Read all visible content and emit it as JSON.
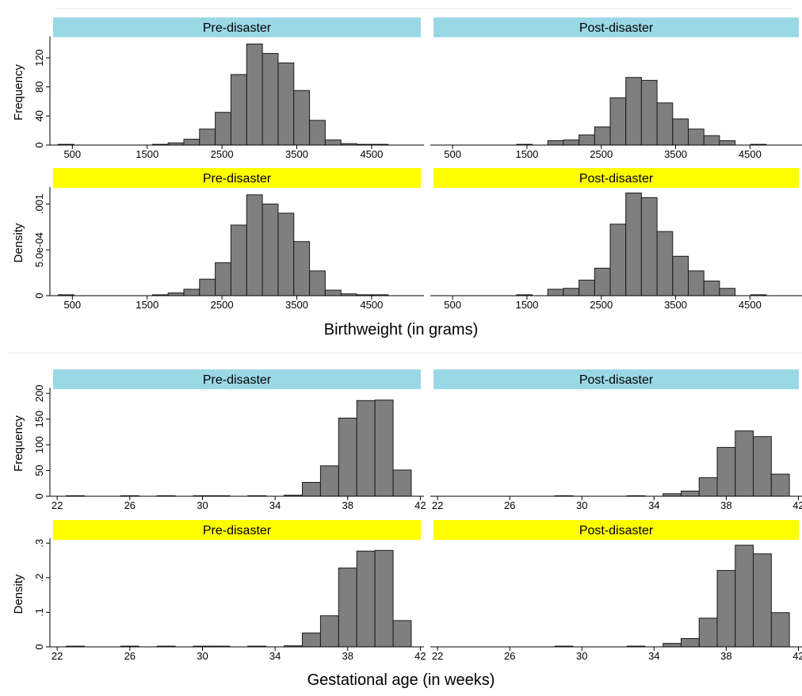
{
  "colors": {
    "strip_frequency": "#9bd8e6",
    "strip_density": "#ffff00",
    "bar_fill": "#7f7f7f",
    "bar_edge": "#1a1a1a"
  },
  "chart_data": [
    {
      "type": "bar",
      "group": "birthweight",
      "xlabel": "Birthweight (in grams)",
      "xticks": [
        500,
        1500,
        2500,
        3500,
        4500
      ],
      "xlim": [
        200,
        5200
      ],
      "bin_width": 210,
      "panels": [
        {
          "strip": "Pre-disaster",
          "ylabel": "Frequency",
          "measure": "frequency",
          "ylim": [
            0,
            145
          ],
          "yticks": [
            0,
            40,
            80,
            120
          ],
          "ytick_labels": [
            "0",
            "40",
            "80",
            "120"
          ],
          "bins": [
            [
              415,
              1
            ],
            [
              1675,
              1
            ],
            [
              1885,
              3
            ],
            [
              2095,
              8
            ],
            [
              2305,
              22
            ],
            [
              2515,
              45
            ],
            [
              2725,
              97
            ],
            [
              2935,
              139
            ],
            [
              3145,
              126
            ],
            [
              3355,
              113
            ],
            [
              3565,
              75
            ],
            [
              3775,
              34
            ],
            [
              3985,
              7
            ],
            [
              4195,
              2
            ],
            [
              4405,
              1
            ],
            [
              4615,
              1
            ]
          ]
        },
        {
          "strip": "Post-disaster",
          "ylabel": "",
          "measure": "frequency",
          "ylim": [
            0,
            145
          ],
          "yticks": [],
          "ytick_labels": [],
          "bins": [
            [
              1465,
              1
            ],
            [
              1885,
              6
            ],
            [
              2095,
              7
            ],
            [
              2305,
              14
            ],
            [
              2515,
              25
            ],
            [
              2725,
              65
            ],
            [
              2935,
              93
            ],
            [
              3145,
              89
            ],
            [
              3355,
              58
            ],
            [
              3565,
              36
            ],
            [
              3775,
              22
            ],
            [
              3985,
              13
            ],
            [
              4195,
              6
            ],
            [
              4615,
              1
            ]
          ]
        },
        {
          "strip": "Pre-disaster",
          "ylabel": "Density",
          "measure": "density",
          "ylim": [
            0,
            0.00115
          ],
          "yticks": [
            0,
            0.0005,
            0.001
          ],
          "ytick_labels": [
            "0",
            "5.0e-04",
            ".001"
          ],
          "bins": [
            [
              415,
              1e-05
            ],
            [
              1675,
              1e-05
            ],
            [
              1885,
              3e-05
            ],
            [
              2095,
              7e-05
            ],
            [
              2305,
              0.00018
            ],
            [
              2515,
              0.00036
            ],
            [
              2725,
              0.00077
            ],
            [
              2935,
              0.0011
            ],
            [
              3145,
              0.001
            ],
            [
              3355,
              0.0009
            ],
            [
              3565,
              0.00059
            ],
            [
              3775,
              0.00027
            ],
            [
              3985,
              6e-05
            ],
            [
              4195,
              2e-05
            ],
            [
              4405,
              1e-05
            ],
            [
              4615,
              1e-05
            ]
          ]
        },
        {
          "strip": "Post-disaster",
          "ylabel": "",
          "measure": "density",
          "ylim": [
            0,
            0.00115
          ],
          "yticks": [],
          "ytick_labels": [],
          "bins": [
            [
              1465,
              1e-05
            ],
            [
              1885,
              7e-05
            ],
            [
              2095,
              8e-05
            ],
            [
              2305,
              0.00017
            ],
            [
              2515,
              0.0003
            ],
            [
              2725,
              0.00078
            ],
            [
              2935,
              0.00112
            ],
            [
              3145,
              0.00107
            ],
            [
              3355,
              0.0007
            ],
            [
              3565,
              0.00043
            ],
            [
              3775,
              0.00027
            ],
            [
              3985,
              0.00016
            ],
            [
              4195,
              8e-05
            ],
            [
              4615,
              1e-05
            ]
          ]
        }
      ]
    },
    {
      "type": "bar",
      "group": "gestational_age",
      "xlabel": "Gestational age (in weeks)",
      "xticks": [
        22,
        26,
        30,
        34,
        38,
        42
      ],
      "xlim": [
        21.6,
        42.2
      ],
      "bin_width": 1,
      "panels": [
        {
          "strip": "Pre-disaster",
          "ylabel": "Frequency",
          "measure": "frequency",
          "ylim": [
            0,
            205
          ],
          "yticks": [
            0,
            50,
            100,
            150,
            200
          ],
          "ytick_labels": [
            "0",
            "50",
            "100",
            "150",
            "200"
          ],
          "bins": [
            [
              23,
              1
            ],
            [
              26,
              1
            ],
            [
              28,
              1
            ],
            [
              30,
              1
            ],
            [
              31,
              1
            ],
            [
              33,
              1
            ],
            [
              35,
              2
            ],
            [
              36,
              27
            ],
            [
              37,
              59
            ],
            [
              38,
              152
            ],
            [
              39,
              186
            ],
            [
              40,
              187
            ],
            [
              41,
              51
            ]
          ]
        },
        {
          "strip": "Post-disaster",
          "ylabel": "",
          "measure": "frequency",
          "ylim": [
            0,
            205
          ],
          "yticks": [],
          "ytick_labels": [],
          "bins": [
            [
              29,
              1
            ],
            [
              33,
              1
            ],
            [
              35,
              5
            ],
            [
              36,
              10
            ],
            [
              37,
              36
            ],
            [
              38,
              95
            ],
            [
              39,
              127
            ],
            [
              40,
              116
            ],
            [
              41,
              43
            ]
          ]
        },
        {
          "strip": "Pre-disaster",
          "ylabel": "Density",
          "measure": "density",
          "ylim": [
            0,
            0.305
          ],
          "yticks": [
            0,
            0.1,
            0.2,
            0.3
          ],
          "ytick_labels": [
            "0",
            ".1",
            ".2",
            ".3"
          ],
          "bins": [
            [
              23,
              0.002
            ],
            [
              26,
              0.002
            ],
            [
              28,
              0.002
            ],
            [
              30,
              0.002
            ],
            [
              31,
              0.002
            ],
            [
              33,
              0.002
            ],
            [
              35,
              0.003
            ],
            [
              36,
              0.04
            ],
            [
              37,
              0.09
            ],
            [
              38,
              0.228
            ],
            [
              39,
              0.277
            ],
            [
              40,
              0.279
            ],
            [
              41,
              0.076
            ]
          ]
        },
        {
          "strip": "Post-disaster",
          "ylabel": "",
          "measure": "density",
          "ylim": [
            0,
            0.305
          ],
          "yticks": [],
          "ytick_labels": [],
          "bins": [
            [
              29,
              0.002
            ],
            [
              33,
              0.002
            ],
            [
              35,
              0.01
            ],
            [
              36,
              0.024
            ],
            [
              37,
              0.083
            ],
            [
              38,
              0.221
            ],
            [
              39,
              0.294
            ],
            [
              40,
              0.269
            ],
            [
              41,
              0.099
            ]
          ]
        }
      ]
    }
  ]
}
